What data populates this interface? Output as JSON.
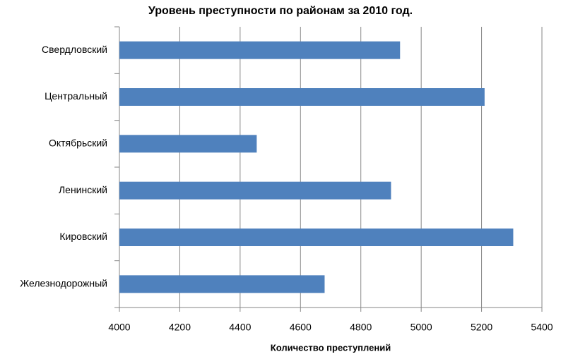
{
  "chart_data": {
    "type": "bar",
    "orientation": "horizontal",
    "title": "Уровень преступности по районам за 2010 год.",
    "x_label": "Количество преступлений",
    "categories": [
      "Свердловский",
      "Центральный",
      "Октябрьский",
      "Ленинский",
      "Кировский",
      "Железнодорожный"
    ],
    "values": [
      4930,
      5210,
      4455,
      4900,
      5305,
      4680
    ],
    "color": "#4f81bd",
    "xlim": [
      4000,
      5400
    ],
    "xticks": [
      4000,
      4200,
      4400,
      4600,
      4800,
      5000,
      5200,
      5400
    ],
    "grid": true
  }
}
